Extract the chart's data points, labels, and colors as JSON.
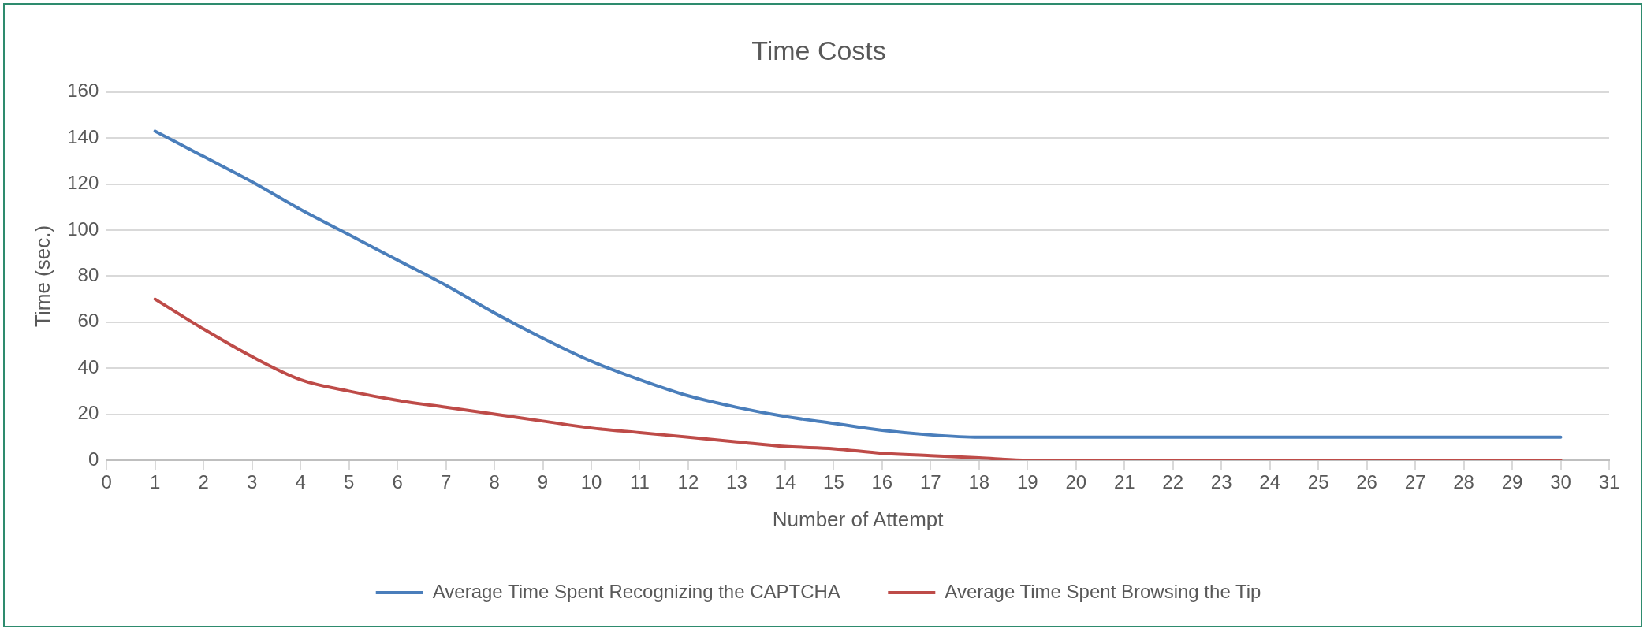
{
  "chart_data": {
    "type": "line",
    "title": "Time Costs",
    "xlabel": "Number of Attempt",
    "ylabel": "Time (sec.)",
    "x": [
      1,
      2,
      3,
      4,
      5,
      6,
      7,
      8,
      9,
      10,
      11,
      12,
      13,
      14,
      15,
      16,
      17,
      18,
      19,
      20,
      21,
      22,
      23,
      24,
      25,
      26,
      27,
      28,
      29,
      30
    ],
    "series": [
      {
        "name": "Average Time Spent Recognizing the CAPTCHA",
        "color": "#4a7ebb",
        "values": [
          143,
          132,
          121,
          109,
          98,
          87,
          76,
          64,
          53,
          43,
          35,
          28,
          23,
          19,
          16,
          13,
          11,
          10,
          10,
          10,
          10,
          10,
          10,
          10,
          10,
          10,
          10,
          10,
          10,
          10
        ]
      },
      {
        "name": "Average Time Spent Browsing the Tip",
        "color": "#be4b48",
        "values": [
          70,
          57,
          45,
          35,
          30,
          26,
          23,
          20,
          17,
          14,
          12,
          10,
          8,
          6,
          5,
          3,
          2,
          1,
          0,
          0,
          0,
          0,
          0,
          0,
          0,
          0,
          0,
          0,
          0,
          0
        ]
      }
    ],
    "xlim": [
      0,
      31
    ],
    "xticks": [
      0,
      1,
      2,
      3,
      4,
      5,
      6,
      7,
      8,
      9,
      10,
      11,
      12,
      13,
      14,
      15,
      16,
      17,
      18,
      19,
      20,
      21,
      22,
      23,
      24,
      25,
      26,
      27,
      28,
      29,
      30,
      31
    ],
    "ylim": [
      0,
      160
    ],
    "yticks": [
      0,
      20,
      40,
      60,
      80,
      100,
      120,
      140,
      160
    ],
    "grid": "y",
    "legend": "bottom",
    "marker": "none",
    "line_style": "solid"
  }
}
